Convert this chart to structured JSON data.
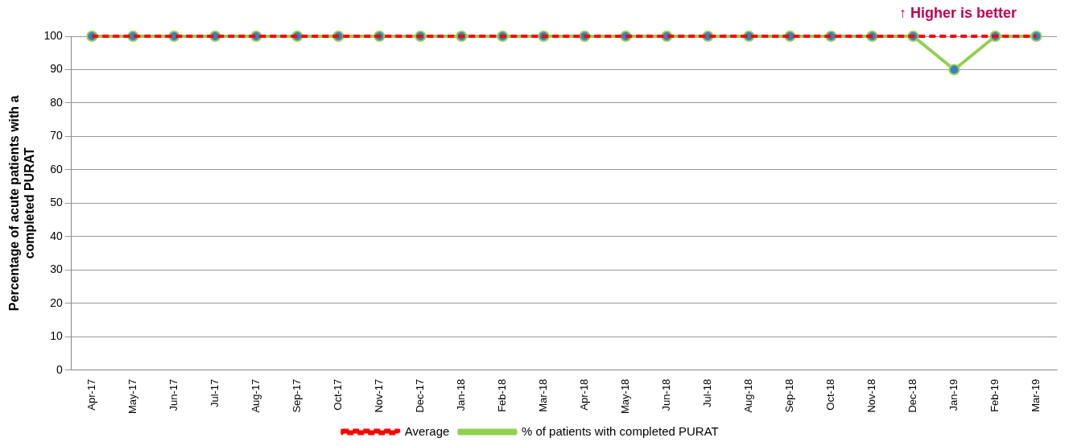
{
  "chart_data": {
    "type": "line",
    "ylabel": "Percentage of acute patients with a completed PURAT",
    "annotations": [
      "↑ Higher is better"
    ],
    "categories": [
      "Apr-17",
      "May-17",
      "Jun-17",
      "Jul-17",
      "Aug-17",
      "Sep-17",
      "Oct-17",
      "Nov-17",
      "Dec-17",
      "Jan-18",
      "Feb-18",
      "Mar-18",
      "Apr-18",
      "May-18",
      "Jun-18",
      "Jul-18",
      "Aug-18",
      "Sep-18",
      "Oct-18",
      "Nov-18",
      "Dec-18",
      "Jan-19",
      "Feb-19",
      "Mar-19"
    ],
    "series": [
      {
        "name": "% of patients with completed PURAT",
        "color": "#92d050",
        "marker": "circle",
        "values": [
          100,
          100,
          100,
          100,
          100,
          100,
          100,
          100,
          100,
          100,
          100,
          100,
          100,
          100,
          100,
          100,
          100,
          100,
          100,
          100,
          100,
          90,
          100,
          100
        ]
      },
      {
        "name": "Average",
        "color": "#ff0000",
        "line_style": "dashed",
        "marker": "none",
        "values": [
          100,
          100,
          100,
          100,
          100,
          100,
          100,
          100,
          100,
          100,
          100,
          100,
          100,
          100,
          100,
          100,
          100,
          100,
          100,
          100,
          100,
          100,
          100,
          100
        ]
      }
    ],
    "ylim": [
      0,
      100
    ],
    "yticks": [
      0,
      10,
      20,
      30,
      40,
      50,
      60,
      70,
      80,
      90,
      100
    ],
    "grid": "y",
    "legend": "bottom"
  }
}
